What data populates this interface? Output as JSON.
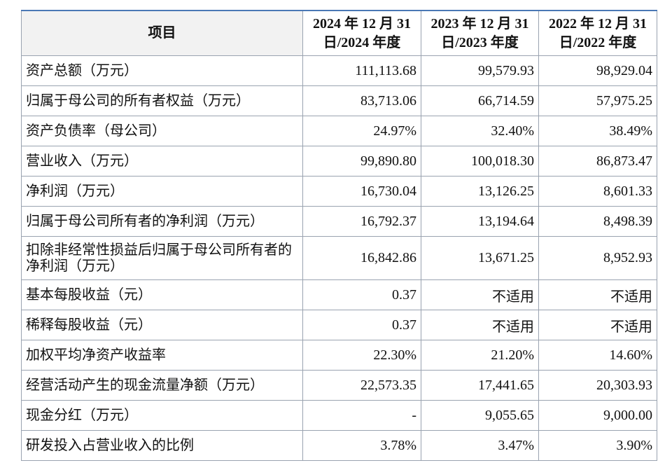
{
  "table": {
    "header": [
      [
        "项目"
      ],
      [
        "2024 年 12 月 31",
        "日/2024 年度"
      ],
      [
        "2023 年 12 月 31",
        "日/2023 年度"
      ],
      [
        "2022 年 12 月 31",
        "日/2022 年度"
      ]
    ],
    "rows": [
      [
        "资产总额（万元）",
        "111,113.68",
        "99,579.93",
        "98,929.04"
      ],
      [
        "归属于母公司的所有者权益（万元）",
        "83,713.06",
        "66,714.59",
        "57,975.25"
      ],
      [
        "资产负债率（母公司）",
        "24.97%",
        "32.40%",
        "38.49%"
      ],
      [
        "营业收入（万元）",
        "99,890.80",
        "100,018.30",
        "86,873.47"
      ],
      [
        "净利润（万元）",
        "16,730.04",
        "13,126.25",
        "8,601.33"
      ],
      [
        "归属于母公司所有者的净利润（万元）",
        "16,792.37",
        "13,194.64",
        "8,498.39"
      ],
      [
        "扣除非经常性损益后归属于母公司所有者的净利润（万元）",
        "16,842.86",
        "13,671.25",
        "8,952.93"
      ],
      [
        "基本每股收益（元）",
        "0.37",
        "不适用",
        "不适用"
      ],
      [
        "稀释每股收益（元）",
        "0.37",
        "不适用",
        "不适用"
      ],
      [
        "加权平均净资产收益率",
        "22.30%",
        "21.20%",
        "14.60%"
      ],
      [
        "经营活动产生的现金流量净额（万元）",
        "22,573.35",
        "17,441.65",
        "20,303.93"
      ],
      [
        "现金分红（万元）",
        "-",
        "9,055.65",
        "9,000.00"
      ],
      [
        "研发投入占营业收入的比例",
        "3.78%",
        "3.47%",
        "3.90%"
      ]
    ]
  }
}
